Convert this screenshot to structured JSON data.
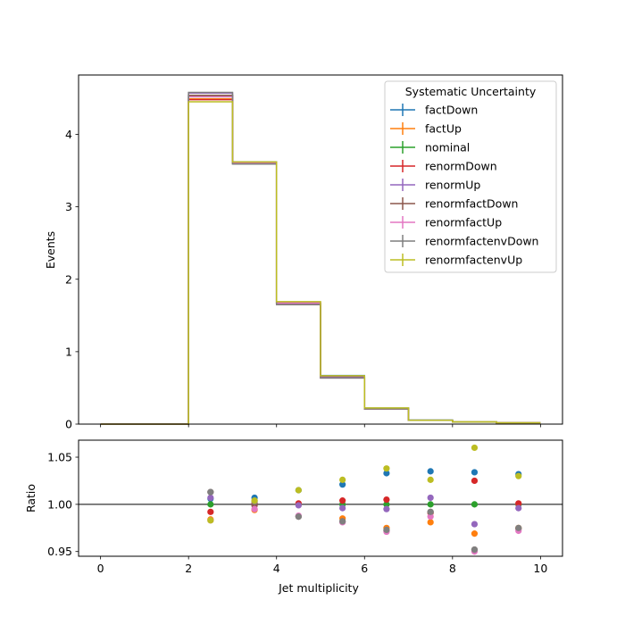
{
  "chart_data": [
    {
      "type": "line",
      "ylabel": "Events",
      "xlim": [
        -0.5,
        10.5
      ],
      "ylim": [
        0,
        4.82
      ],
      "yticks": [
        0,
        1,
        2,
        3,
        4
      ],
      "bin_edges": [
        0,
        1,
        2,
        3,
        4,
        5,
        6,
        7,
        8,
        9,
        10
      ],
      "legend": {
        "title": "Systematic Uncertainty",
        "position": "top-right"
      },
      "series": [
        {
          "name": "factDown",
          "color": "#1f77b4",
          "values": [
            0,
            0,
            4.54,
            3.6,
            1.66,
            0.67,
            0.22,
            0.055,
            0.03,
            0.018
          ]
        },
        {
          "name": "factUp",
          "color": "#ff7f0e",
          "values": [
            0,
            0,
            4.49,
            3.6,
            1.67,
            0.64,
            0.21,
            0.052,
            0.028,
            0.017
          ]
        },
        {
          "name": "nominal",
          "color": "#2ca02c",
          "values": [
            0,
            0,
            4.52,
            3.62,
            1.67,
            0.65,
            0.215,
            0.053,
            0.029,
            0.0175
          ]
        },
        {
          "name": "renormDown",
          "color": "#d62728",
          "values": [
            0,
            0,
            4.48,
            3.61,
            1.67,
            0.653,
            0.216,
            0.053,
            0.0297,
            0.0176
          ]
        },
        {
          "name": "renormUp",
          "color": "#9467bd",
          "values": [
            0,
            0,
            4.57,
            3.62,
            1.67,
            0.648,
            0.214,
            0.0534,
            0.0284,
            0.0174
          ]
        },
        {
          "name": "renormfactDown",
          "color": "#8c564b",
          "values": [
            0,
            0,
            4.54,
            3.61,
            1.65,
            0.64,
            0.21,
            0.052,
            0.0276,
            0.017
          ]
        },
        {
          "name": "renormfactUp",
          "color": "#e377c2",
          "values": [
            0,
            0,
            4.52,
            3.6,
            1.67,
            0.637,
            0.209,
            0.0524,
            0.0276,
            0.017
          ]
        },
        {
          "name": "renormfactenvDown",
          "color": "#7f7f7f",
          "values": [
            0,
            0,
            4.58,
            3.59,
            1.65,
            0.637,
            0.209,
            0.0524,
            0.0276,
            0.017
          ]
        },
        {
          "name": "renormfactenvUp",
          "color": "#bcbd22",
          "values": [
            0,
            0,
            4.45,
            3.62,
            1.69,
            0.667,
            0.223,
            0.0545,
            0.0307,
            0.018
          ]
        }
      ]
    },
    {
      "type": "scatter",
      "xlabel": "Jet multiplicity",
      "ylabel": "Ratio",
      "xlim": [
        -0.5,
        10.5
      ],
      "ylim": [
        0.945,
        1.068
      ],
      "xticks": [
        0,
        2,
        4,
        6,
        8,
        10
      ],
      "yticks": [
        0.95,
        1.0,
        1.05
      ],
      "ytick_labels": [
        "0.95",
        "1.00",
        "1.05"
      ],
      "reference_line": 1.0,
      "x": [
        2.5,
        3.5,
        4.5,
        5.5,
        6.5,
        7.5,
        8.5,
        9.5
      ],
      "series": [
        {
          "name": "factDown",
          "color": "#1f77b4",
          "values": [
            1.006,
            1.007,
            1.015,
            1.021,
            1.033,
            1.035,
            1.034,
            1.032
          ]
        },
        {
          "name": "factUp",
          "color": "#ff7f0e",
          "values": [
            0.984,
            0.994,
            1.0,
            0.985,
            0.975,
            0.981,
            0.969,
            0.975
          ]
        },
        {
          "name": "nominal",
          "color": "#2ca02c",
          "values": [
            1.0,
            1.0,
            1.0,
            1.0,
            1.0,
            1.0,
            1.0,
            1.0
          ]
        },
        {
          "name": "renormDown",
          "color": "#d62728",
          "values": [
            0.992,
            1.001,
            1.001,
            1.004,
            1.005,
            0.991,
            1.025,
            1.001
          ]
        },
        {
          "name": "renormUp",
          "color": "#9467bd",
          "values": [
            1.007,
            0.999,
            0.999,
            0.996,
            0.995,
            1.007,
            0.979,
            0.996
          ]
        },
        {
          "name": "renormfactDown",
          "color": "#8c564b",
          "values": [
            1.013,
            0.999,
            0.987,
            0.982,
            0.972,
            0.992,
            0.952,
            0.974
          ]
        },
        {
          "name": "renormfactUp",
          "color": "#e377c2",
          "values": [
            0.983,
            0.995,
            0.988,
            0.981,
            0.971,
            0.987,
            0.95,
            0.972
          ]
        },
        {
          "name": "renormfactenvDown",
          "color": "#7f7f7f",
          "values": [
            1.013,
            1.003,
            0.987,
            0.982,
            0.973,
            0.992,
            0.952,
            0.975
          ]
        },
        {
          "name": "renormfactenvUp",
          "color": "#bcbd22",
          "values": [
            0.983,
            1.004,
            1.015,
            1.026,
            1.038,
            1.026,
            1.06,
            1.03
          ]
        }
      ]
    }
  ]
}
